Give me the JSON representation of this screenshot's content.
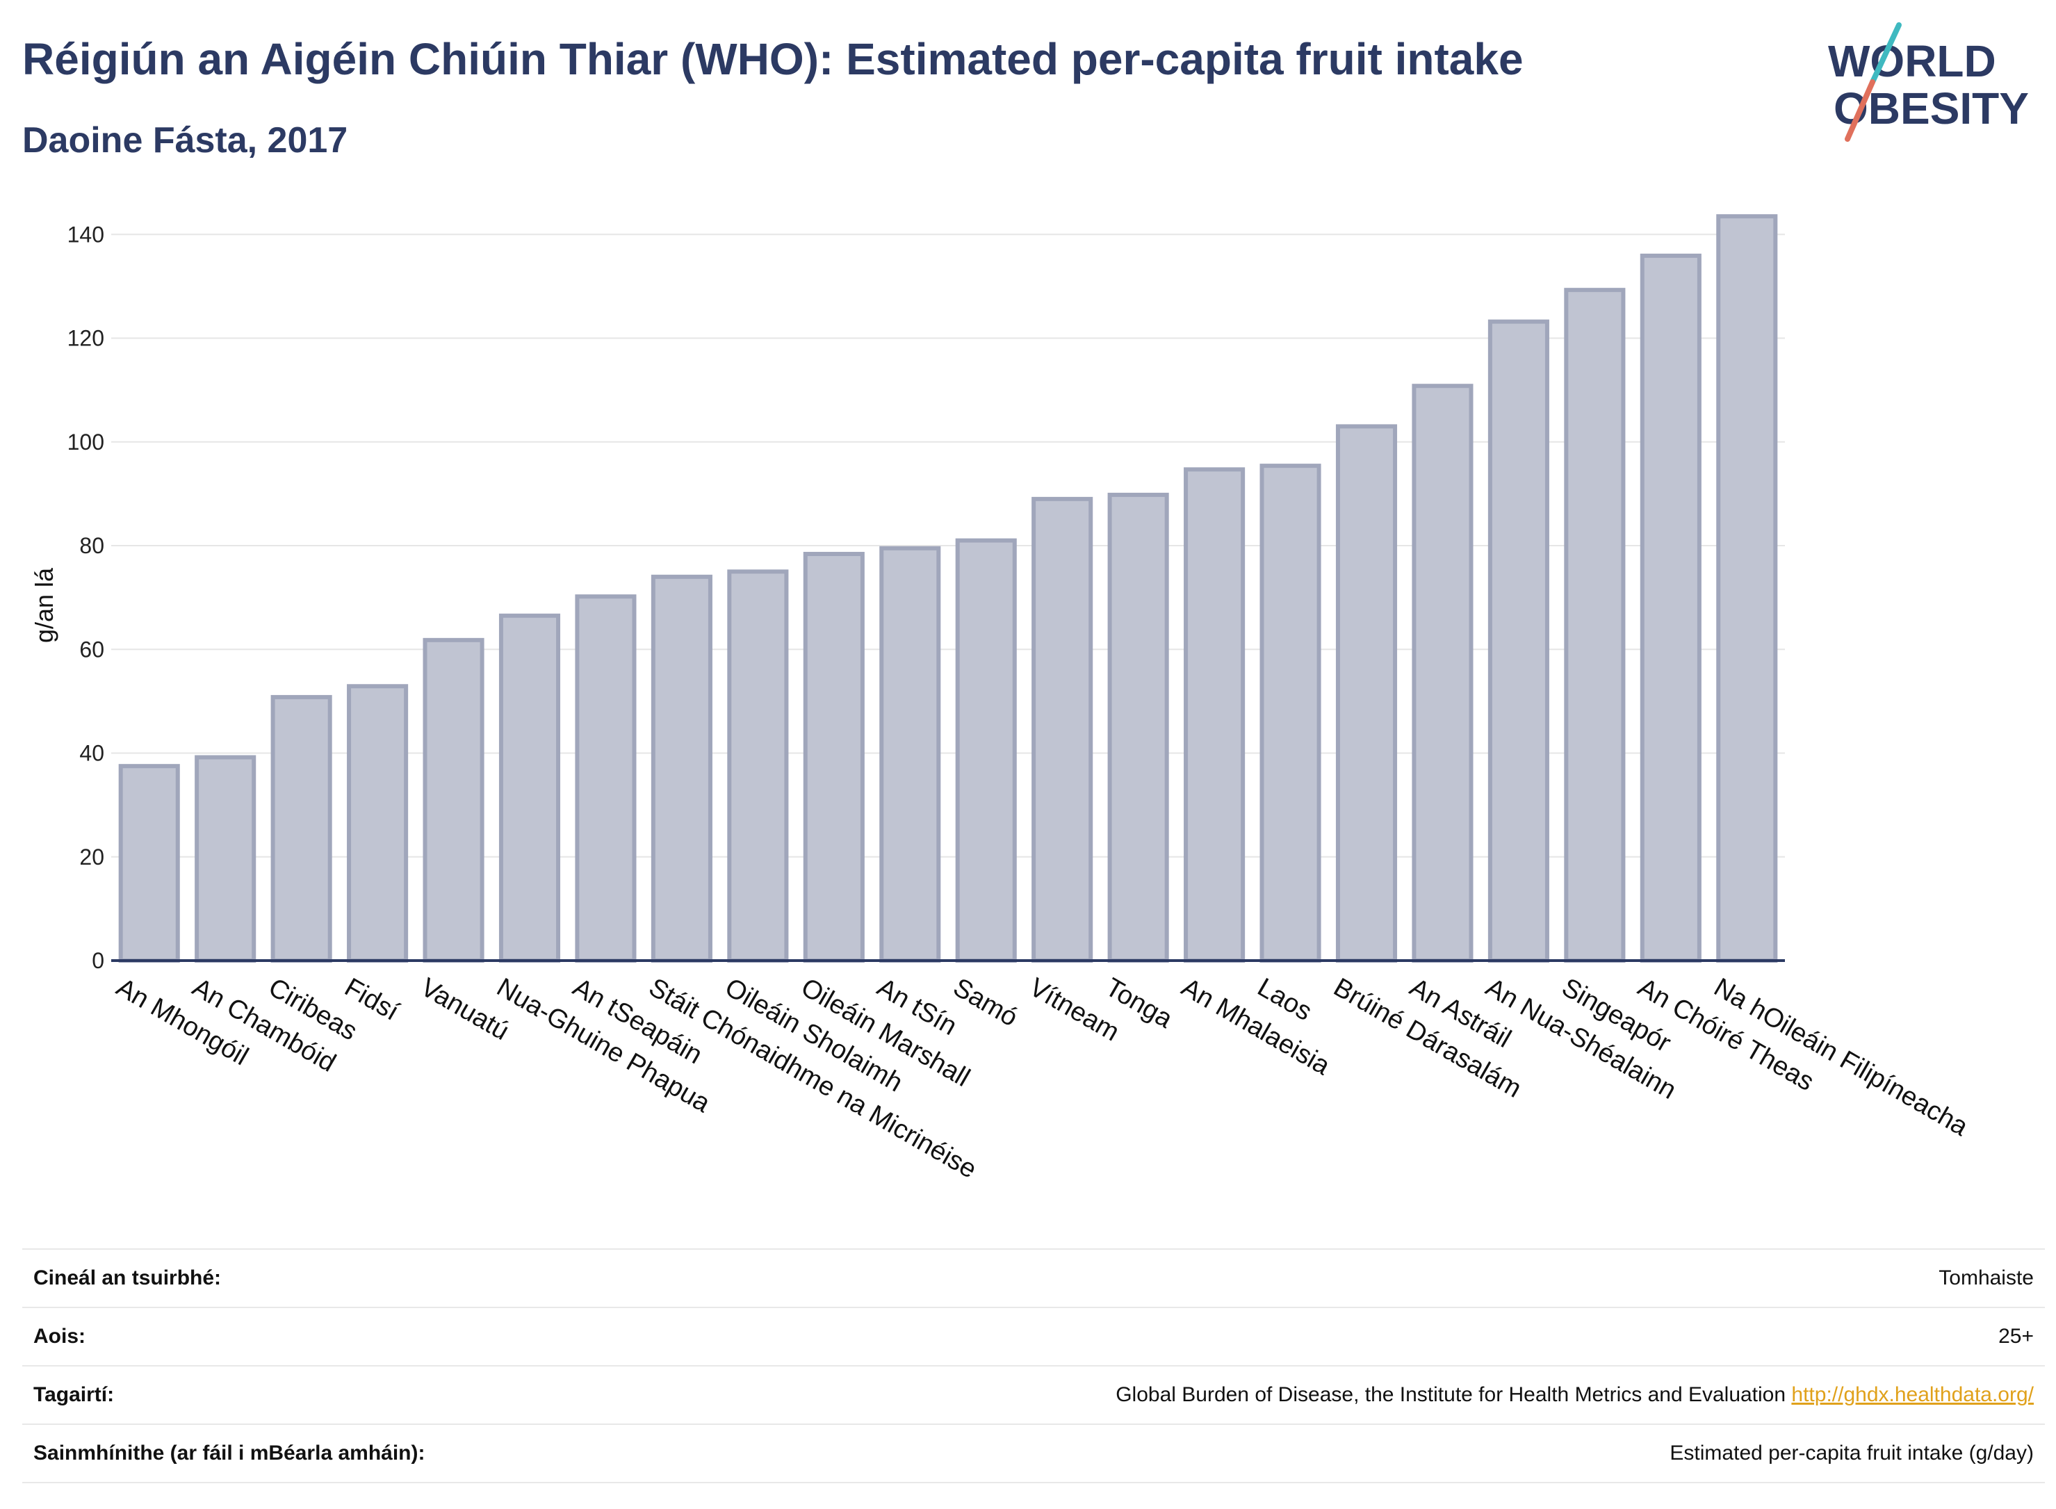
{
  "header": {
    "title": "Réigiún an Aigéin Chiúin Thiar (WHO): Estimated per-capita fruit intake",
    "subtitle": "Daoine Fásta, 2017"
  },
  "logo": {
    "line1": "WORLD",
    "line2": "OBESITY"
  },
  "chart_data": {
    "type": "bar",
    "ylabel": "g/an lá",
    "xlabel": "",
    "ylim": [
      0,
      145
    ],
    "yticks": [
      0,
      20,
      40,
      60,
      80,
      100,
      120,
      140
    ],
    "grid": true,
    "categories": [
      "An Mhongóil",
      "An Chambóid",
      "Ciribeas",
      "Fidsí",
      "Vanuatú",
      "Nua-Ghuine Phapua",
      "An tSeapáin",
      "Stáit Chónaidhme na Micrinéise",
      "Oileáin Sholaimh",
      "Oileáin Marshall",
      "An tSín",
      "Samó",
      "Vítneam",
      "Tonga",
      "An Mhalaeisia",
      "Laos",
      "Brúiné Dárasalám",
      "An Astráil",
      "An Nua-Shéalainn",
      "Singeapór",
      "An Chóiré Theas",
      "Na hOileáin Filipíneacha"
    ],
    "values": [
      37.5,
      39.2,
      50.8,
      52.9,
      61.8,
      66.5,
      70.2,
      74.0,
      75.0,
      78.4,
      79.5,
      81.0,
      89.0,
      89.8,
      94.7,
      95.4,
      103.0,
      110.8,
      123.2,
      129.3,
      135.9,
      143.5
    ],
    "colors": {
      "bar_fill": "#c0c4d2",
      "bar_stroke": "#a0a6bb",
      "axis": "#2c3a63",
      "grid": "#e6e6e6"
    }
  },
  "info": [
    {
      "label": "Cineál an tsuirbhé:",
      "value": "Tomhaiste"
    },
    {
      "label": "Aois:",
      "value": "25+"
    },
    {
      "label": "Tagairtí:",
      "value": "Global Burden of Disease, the Institute for Health Metrics and Evaluation",
      "link": "http://ghdx.healthdata.org/"
    },
    {
      "label": "Sainmhínithe (ar fáil i mBéarla amháin):",
      "value": "Estimated per-capita fruit intake (g/day)"
    }
  ]
}
